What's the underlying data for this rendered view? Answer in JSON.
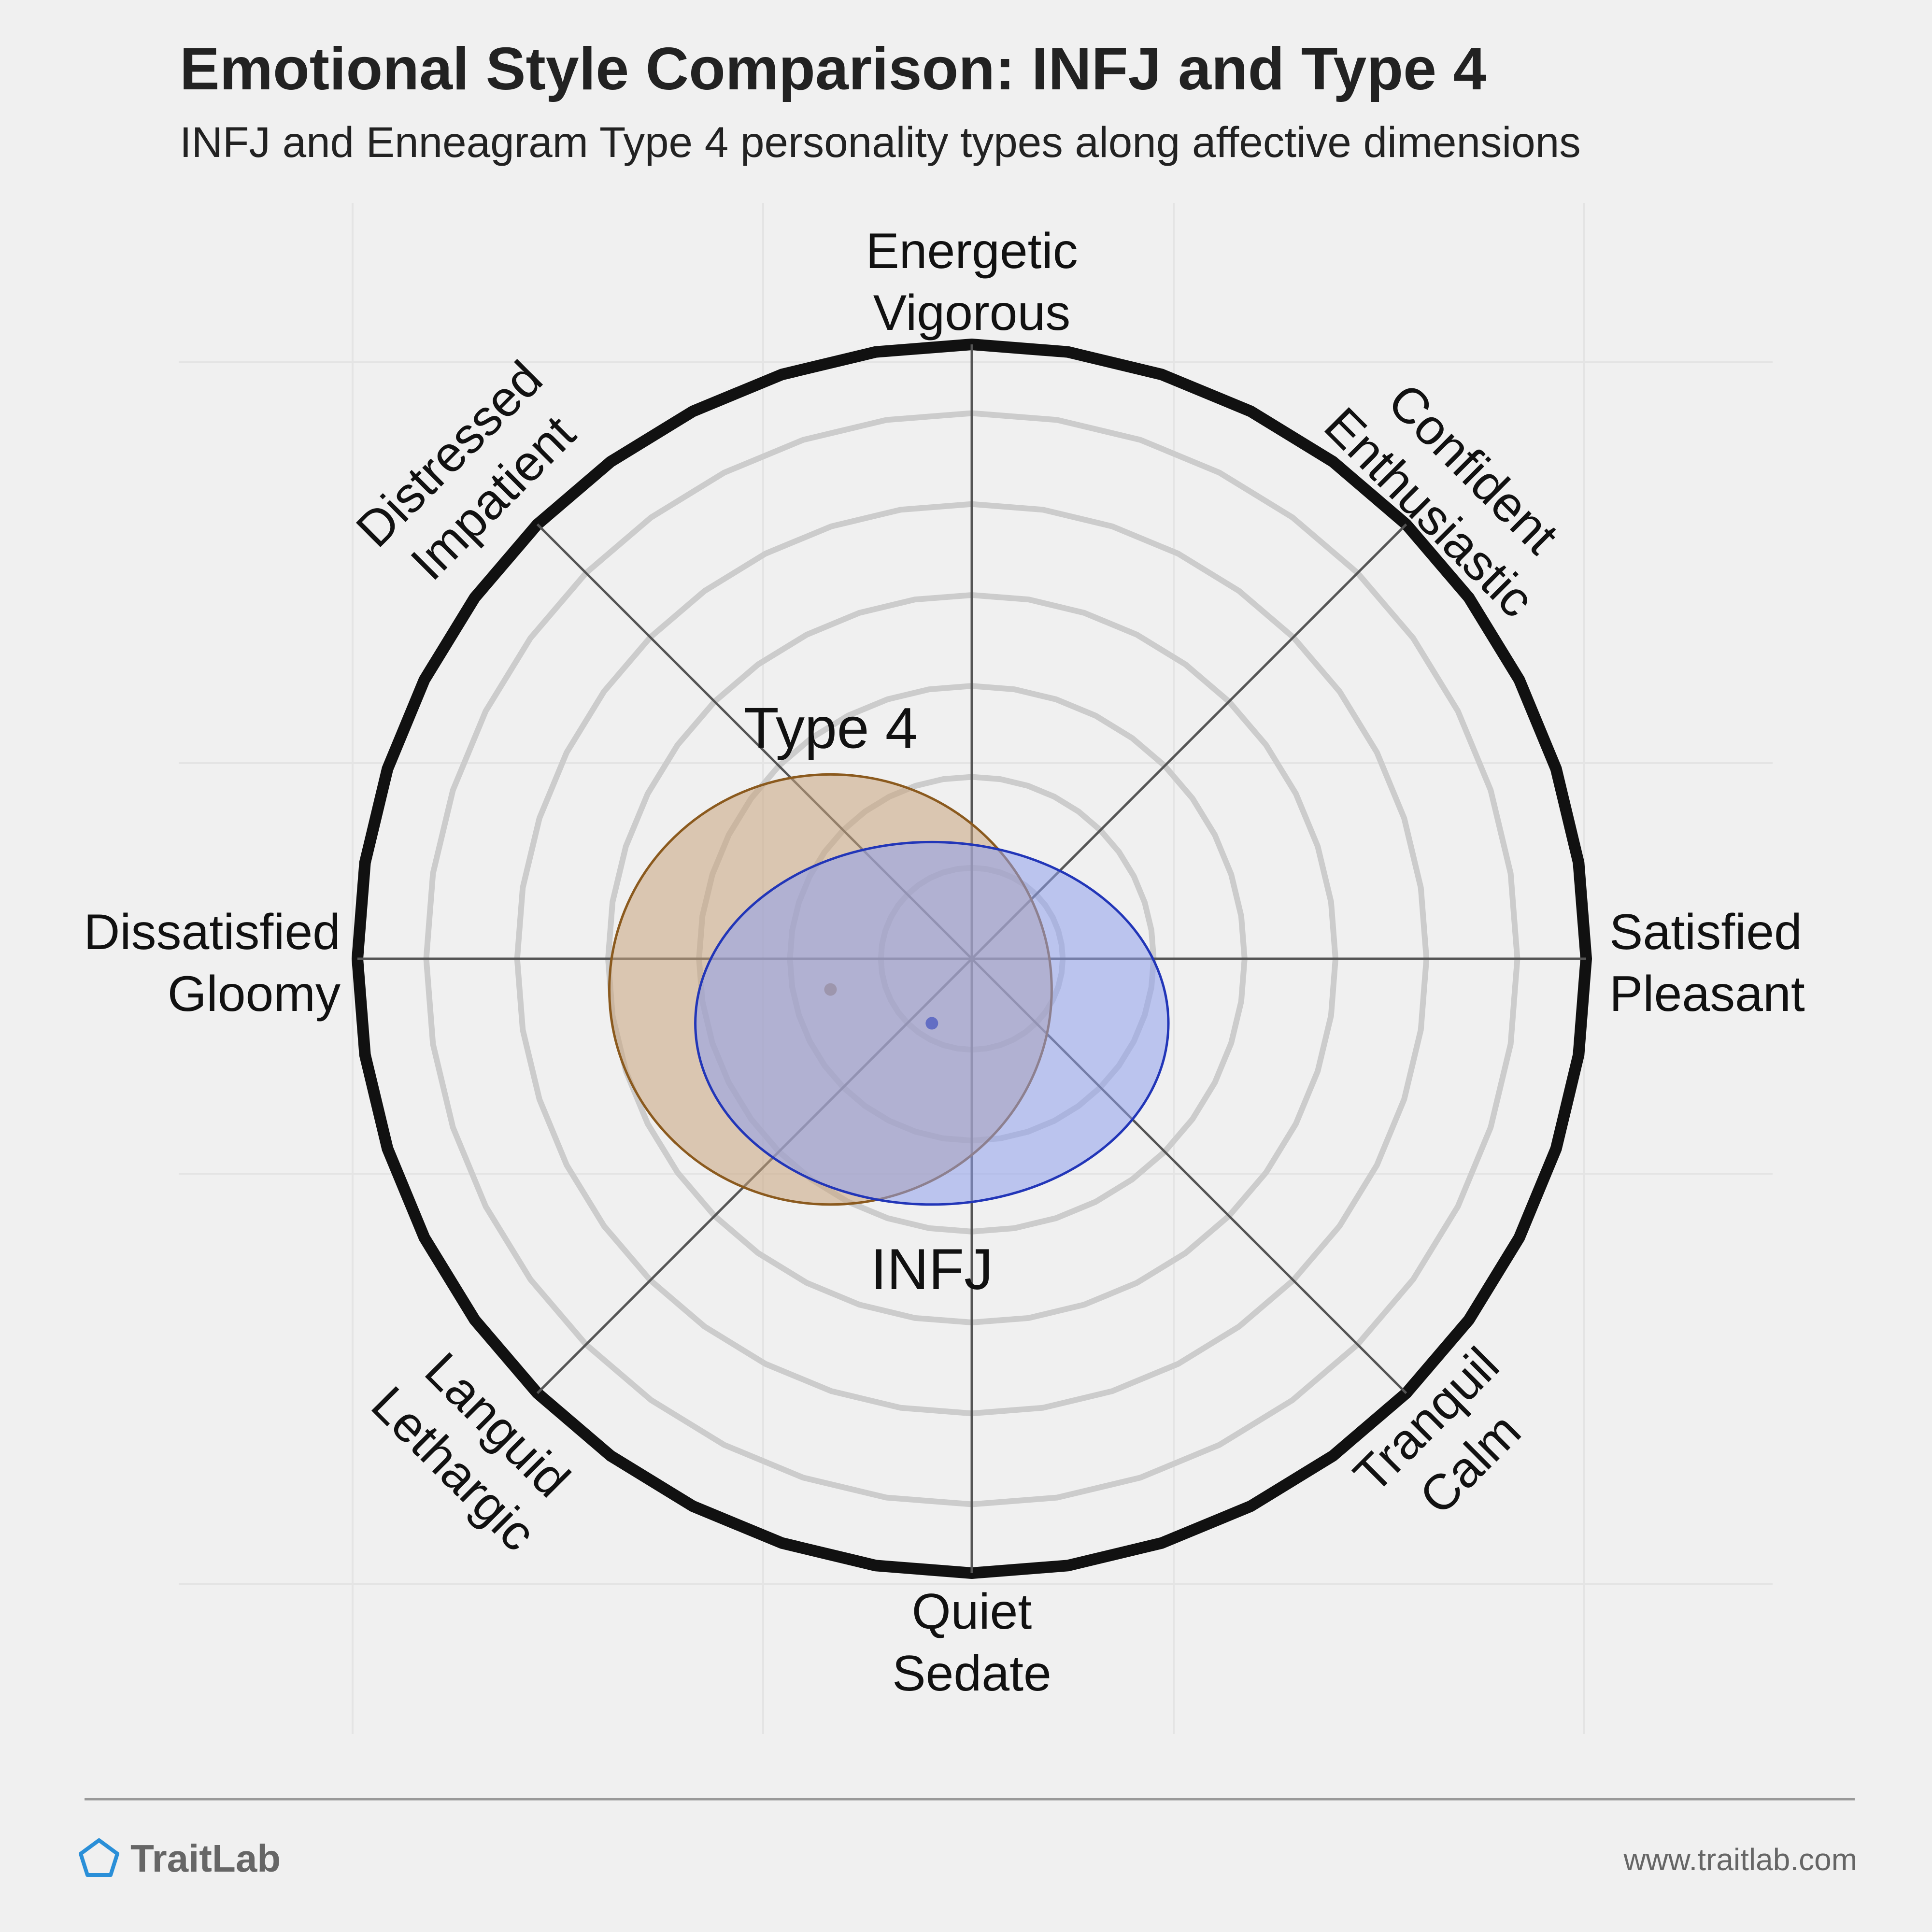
{
  "chart_data": {
    "type": "scatter",
    "title": "Emotional Style Comparison: INFJ and Type 4",
    "subtitle": "INFJ and Enneagram Type 4 personality types along affective dimensions",
    "axis_labels": [
      {
        "id": "top",
        "lines": [
          "Energetic",
          "Vigorous"
        ]
      },
      {
        "id": "top-right",
        "lines": [
          "Confident",
          "Enthusiastic"
        ]
      },
      {
        "id": "right",
        "lines": [
          "Satisfied",
          "Pleasant"
        ]
      },
      {
        "id": "bottom-right",
        "lines": [
          "Tranquil",
          "Calm"
        ]
      },
      {
        "id": "bottom",
        "lines": [
          "Quiet",
          "Sedate"
        ]
      },
      {
        "id": "bottom-left",
        "lines": [
          "Languid",
          "Lethargic"
        ]
      },
      {
        "id": "left",
        "lines": [
          "Dissatisfied",
          "Gloomy"
        ]
      },
      {
        "id": "top-left",
        "lines": [
          "Distressed",
          "Impatient"
        ]
      }
    ],
    "xlim": [
      -1,
      1
    ],
    "ylim": [
      -1,
      1
    ],
    "ring_count": 6,
    "grid": true,
    "series": [
      {
        "name": "Type 4",
        "center": [
          -0.23,
          -0.05
        ],
        "spread": [
          0.36,
          0.35
        ],
        "color": "#8b5a1e",
        "fill": "#c8a47e"
      },
      {
        "name": "INFJ",
        "center": [
          -0.065,
          -0.105
        ],
        "spread": [
          0.385,
          0.295
        ],
        "color": "#2236b8",
        "fill": "#8fa0ec"
      }
    ]
  },
  "footer": {
    "brand": "TraitLab",
    "url": "www.traitlab.com"
  },
  "colors": {
    "background": "#f0f0f0",
    "outer_ring": "#111111",
    "inner_rings": "#cccccc",
    "axes": "#555555",
    "type4": "#8b5a1e",
    "infj": "#2236b8",
    "logo": "#2a8fd8"
  }
}
